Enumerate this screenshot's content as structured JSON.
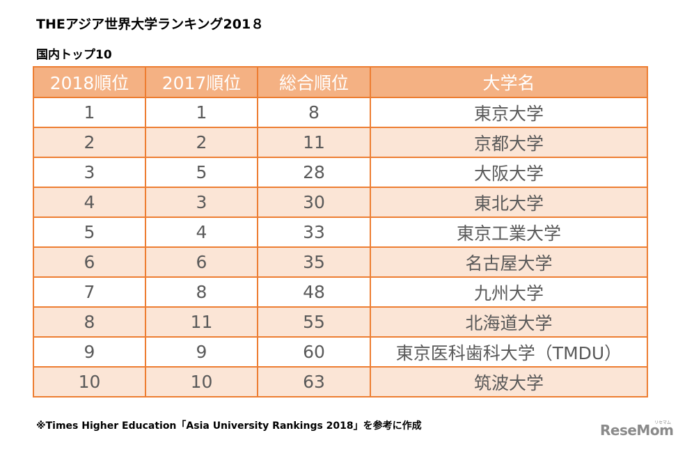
{
  "title": "THEアジア世界大学ランキング201８",
  "subtitle": "国内トップ10",
  "table": {
    "headers": [
      "2018順位",
      "2017順位",
      "総合順位",
      "大学名"
    ],
    "rows": [
      [
        "1",
        "1",
        "8",
        "東京大学"
      ],
      [
        "2",
        "2",
        "11",
        "京都大学"
      ],
      [
        "3",
        "5",
        "28",
        "大阪大学"
      ],
      [
        "4",
        "3",
        "30",
        "東北大学"
      ],
      [
        "5",
        "4",
        "33",
        "東京工業大学"
      ],
      [
        "6",
        "6",
        "35",
        "名古屋大学"
      ],
      [
        "7",
        "8",
        "48",
        "九州大学"
      ],
      [
        "8",
        "11",
        "55",
        "北海道大学"
      ],
      [
        "9",
        "9",
        "60",
        "東京医科歯科大学（TMDU）"
      ],
      [
        "10",
        "10",
        "63",
        "筑波大学"
      ]
    ]
  },
  "footnote": "※Times Higher Education「Asia University Rankings 2018」を参考に作成",
  "logo": {
    "text": "ReseMom",
    "sub": "リセマム"
  },
  "colors": {
    "border": "#ED7D31",
    "header_bg": "#F4B183",
    "stripe": "#FBE5D6",
    "text": "#595959"
  }
}
